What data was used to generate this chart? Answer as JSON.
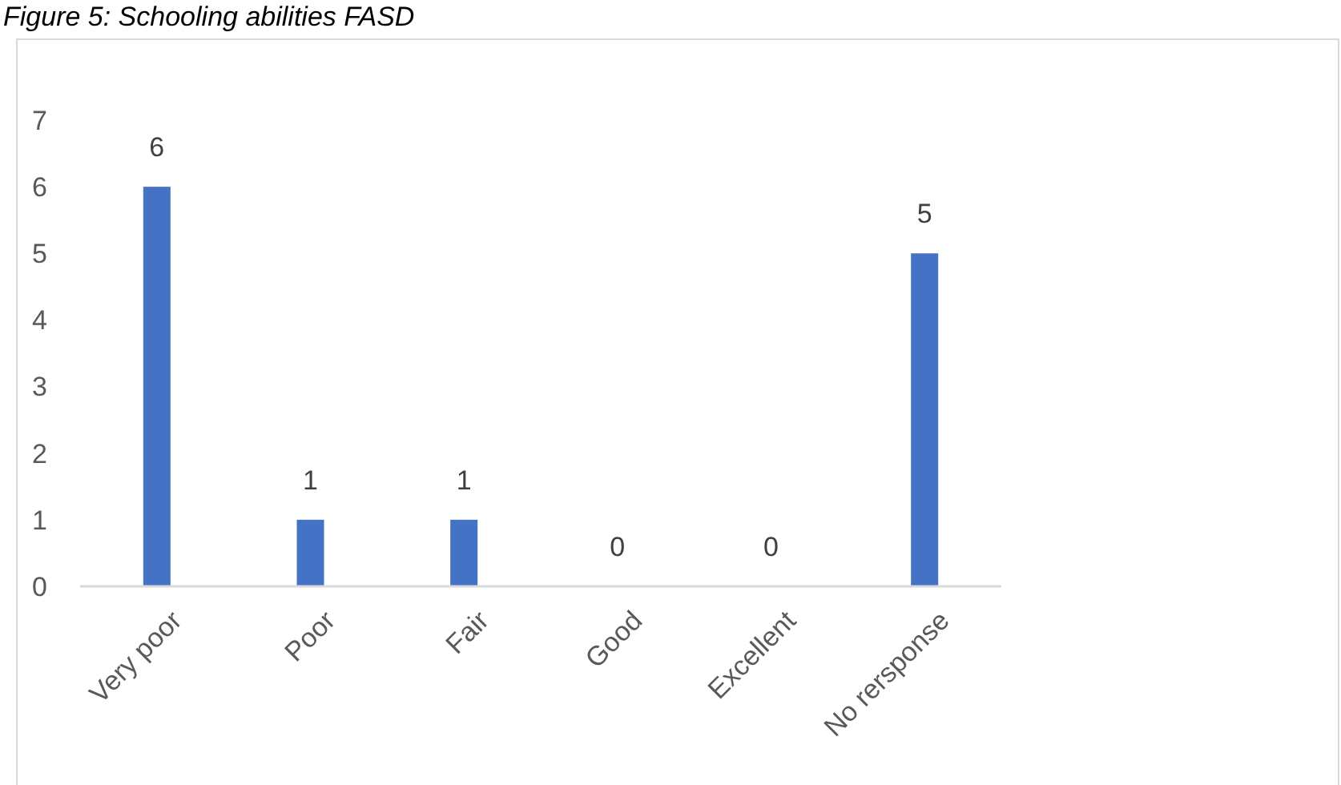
{
  "chart_data": {
    "type": "bar",
    "title": "Figure 5: Schooling abilities FASD",
    "categories": [
      "Very poor",
      "Poor",
      "Fair",
      "Good",
      "Excellent",
      "No rersponse"
    ],
    "values": [
      6,
      1,
      1,
      0,
      0,
      5
    ],
    "color": "#4472c4",
    "ylim": [
      0,
      7
    ],
    "yticks": [
      0,
      1,
      2,
      3,
      4,
      5,
      6,
      7
    ],
    "grid": false,
    "data_labels": true
  }
}
